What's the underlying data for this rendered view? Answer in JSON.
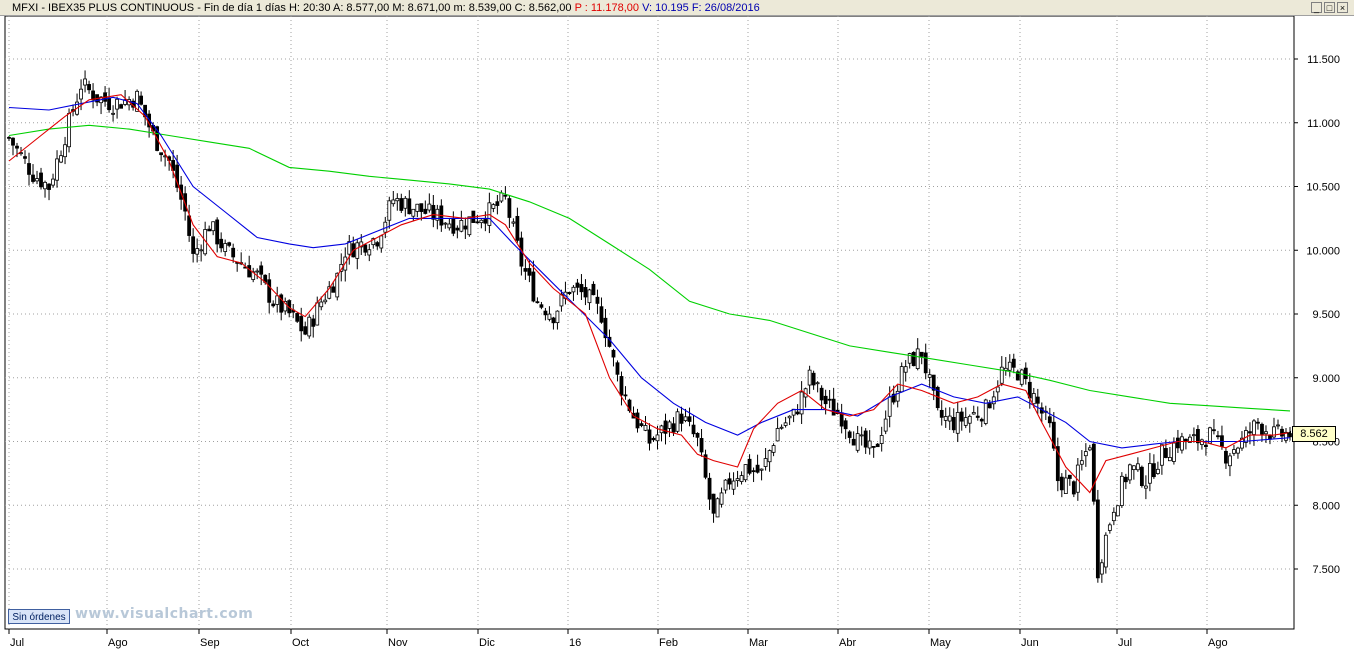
{
  "header": {
    "symbol": "MFXI - IBEX35 PLUS CONTINUOUS - Fin de día 1 días",
    "hour": "H: 20:30",
    "open": "A: 8.577,00",
    "high": "M: 8.671,00",
    "low": "m: 8.539,00",
    "close": "C: 8.562,00",
    "p_value": "P : 11.178,00",
    "volume": "V: 10.195",
    "date": "F: 26/08/2016"
  },
  "buttons": {
    "minimize": "_",
    "restore": "□",
    "close": "×"
  },
  "footer": {
    "orders_label": "Sin órdenes",
    "watermark": "www.visualchart.com"
  },
  "last_price": "8.562",
  "colors": {
    "ma_short": "#e00000",
    "ma_mid": "#0000e0",
    "ma_long": "#00d000",
    "candle": "#000000",
    "grid": "#a0a0a0"
  },
  "chart_data": {
    "type": "candlestick",
    "title": "",
    "y_ticks": [
      "11.500",
      "11.000",
      "10.500",
      "10.000",
      "9.500",
      "9.000",
      "8.500",
      "8.000",
      "7.500"
    ],
    "x_ticks": [
      "Jul",
      "Ago",
      "Sep",
      "Oct",
      "Nov",
      "Dic",
      "16",
      "Feb",
      "Mar",
      "Abr",
      "May",
      "Jun",
      "Jul",
      "Ago"
    ],
    "ylim": [
      7200,
      11900
    ],
    "grid": true,
    "series": [
      {
        "name": "close_path",
        "values": [
          [
            0,
            10880
          ],
          [
            6,
            10600
          ],
          [
            10,
            10500
          ],
          [
            14,
            10900
          ],
          [
            18,
            11300
          ],
          [
            22,
            11200
          ],
          [
            26,
            11150
          ],
          [
            32,
            11200
          ],
          [
            36,
            10900
          ],
          [
            40,
            10700
          ],
          [
            44,
            10300
          ],
          [
            46,
            9950
          ],
          [
            50,
            10200
          ],
          [
            54,
            10000
          ],
          [
            58,
            9900
          ],
          [
            62,
            9800
          ],
          [
            66,
            9600
          ],
          [
            70,
            9500
          ],
          [
            74,
            9350
          ],
          [
            78,
            9600
          ],
          [
            82,
            9800
          ],
          [
            84,
            10000
          ],
          [
            88,
            10050
          ],
          [
            92,
            10100
          ],
          [
            96,
            10400
          ],
          [
            100,
            10350
          ],
          [
            104,
            10300
          ],
          [
            108,
            10250
          ],
          [
            112,
            10200
          ],
          [
            116,
            10250
          ],
          [
            120,
            10300
          ],
          [
            124,
            10400
          ],
          [
            128,
            9900
          ],
          [
            132,
            9600
          ],
          [
            136,
            9500
          ],
          [
            140,
            9700
          ],
          [
            144,
            9650
          ],
          [
            148,
            9500
          ],
          [
            152,
            9000
          ],
          [
            156,
            8700
          ],
          [
            160,
            8500
          ],
          [
            164,
            8600
          ],
          [
            168,
            8700
          ],
          [
            172,
            8500
          ],
          [
            176,
            7900
          ],
          [
            180,
            8200
          ],
          [
            184,
            8300
          ],
          [
            188,
            8250
          ],
          [
            192,
            8600
          ],
          [
            196,
            8700
          ],
          [
            200,
            9000
          ],
          [
            204,
            8800
          ],
          [
            208,
            8700
          ],
          [
            212,
            8500
          ],
          [
            216,
            8400
          ],
          [
            220,
            8800
          ],
          [
            224,
            9100
          ],
          [
            228,
            9200
          ],
          [
            232,
            8700
          ],
          [
            236,
            8650
          ],
          [
            240,
            8700
          ],
          [
            244,
            8750
          ],
          [
            248,
            9050
          ],
          [
            252,
            9050
          ],
          [
            256,
            8850
          ],
          [
            260,
            8600
          ],
          [
            262,
            8200
          ],
          [
            266,
            8150
          ],
          [
            270,
            8500
          ],
          [
            272,
            7500
          ],
          [
            276,
            8000
          ],
          [
            280,
            8300
          ],
          [
            284,
            8200
          ],
          [
            288,
            8400
          ],
          [
            292,
            8500
          ],
          [
            296,
            8500
          ],
          [
            300,
            8550
          ],
          [
            304,
            8400
          ],
          [
            308,
            8500
          ],
          [
            312,
            8650
          ],
          [
            316,
            8550
          ],
          [
            320,
            8562
          ]
        ]
      },
      {
        "name": "ma_short",
        "values": [
          [
            0,
            10700
          ],
          [
            8,
            10900
          ],
          [
            14,
            11050
          ],
          [
            20,
            11180
          ],
          [
            28,
            11220
          ],
          [
            34,
            11050
          ],
          [
            40,
            10700
          ],
          [
            46,
            10200
          ],
          [
            52,
            9950
          ],
          [
            58,
            9900
          ],
          [
            64,
            9750
          ],
          [
            70,
            9550
          ],
          [
            74,
            9480
          ],
          [
            80,
            9700
          ],
          [
            86,
            10000
          ],
          [
            92,
            10100
          ],
          [
            98,
            10200
          ],
          [
            106,
            10280
          ],
          [
            114,
            10250
          ],
          [
            120,
            10280
          ],
          [
            124,
            10200
          ],
          [
            130,
            9900
          ],
          [
            136,
            9700
          ],
          [
            144,
            9500
          ],
          [
            150,
            9000
          ],
          [
            156,
            8700
          ],
          [
            162,
            8600
          ],
          [
            168,
            8550
          ],
          [
            172,
            8400
          ],
          [
            176,
            8350
          ],
          [
            182,
            8300
          ],
          [
            186,
            8600
          ],
          [
            192,
            8800
          ],
          [
            198,
            8900
          ],
          [
            204,
            8750
          ],
          [
            210,
            8700
          ],
          [
            216,
            8750
          ],
          [
            222,
            8950
          ],
          [
            228,
            8900
          ],
          [
            236,
            8800
          ],
          [
            242,
            8850
          ],
          [
            248,
            8950
          ],
          [
            254,
            8900
          ],
          [
            258,
            8650
          ],
          [
            264,
            8300
          ],
          [
            270,
            8100
          ],
          [
            274,
            8350
          ],
          [
            280,
            8400
          ],
          [
            286,
            8450
          ],
          [
            292,
            8500
          ],
          [
            298,
            8500
          ],
          [
            304,
            8450
          ],
          [
            310,
            8550
          ],
          [
            316,
            8550
          ],
          [
            320,
            8570
          ]
        ]
      },
      {
        "name": "ma_mid",
        "values": [
          [
            0,
            11120
          ],
          [
            10,
            11100
          ],
          [
            18,
            11150
          ],
          [
            26,
            11200
          ],
          [
            32,
            11150
          ],
          [
            38,
            10900
          ],
          [
            46,
            10500
          ],
          [
            54,
            10300
          ],
          [
            62,
            10100
          ],
          [
            70,
            10050
          ],
          [
            76,
            10020
          ],
          [
            84,
            10050
          ],
          [
            92,
            10150
          ],
          [
            100,
            10250
          ],
          [
            106,
            10250
          ],
          [
            114,
            10250
          ],
          [
            120,
            10250
          ],
          [
            126,
            10050
          ],
          [
            134,
            9800
          ],
          [
            142,
            9550
          ],
          [
            150,
            9300
          ],
          [
            158,
            9000
          ],
          [
            166,
            8800
          ],
          [
            174,
            8650
          ],
          [
            182,
            8550
          ],
          [
            188,
            8650
          ],
          [
            196,
            8750
          ],
          [
            204,
            8750
          ],
          [
            212,
            8700
          ],
          [
            220,
            8850
          ],
          [
            228,
            8950
          ],
          [
            236,
            8850
          ],
          [
            244,
            8800
          ],
          [
            252,
            8850
          ],
          [
            258,
            8750
          ],
          [
            264,
            8650
          ],
          [
            270,
            8500
          ],
          [
            278,
            8450
          ],
          [
            286,
            8480
          ],
          [
            292,
            8500
          ],
          [
            300,
            8500
          ],
          [
            308,
            8500
          ],
          [
            316,
            8520
          ],
          [
            320,
            8530
          ]
        ]
      },
      {
        "name": "ma_long",
        "values": [
          [
            0,
            10900
          ],
          [
            10,
            10950
          ],
          [
            20,
            10980
          ],
          [
            30,
            10950
          ],
          [
            40,
            10900
          ],
          [
            50,
            10850
          ],
          [
            60,
            10800
          ],
          [
            70,
            10650
          ],
          [
            80,
            10620
          ],
          [
            90,
            10580
          ],
          [
            100,
            10550
          ],
          [
            110,
            10520
          ],
          [
            120,
            10480
          ],
          [
            130,
            10380
          ],
          [
            140,
            10250
          ],
          [
            150,
            10050
          ],
          [
            160,
            9850
          ],
          [
            170,
            9600
          ],
          [
            180,
            9500
          ],
          [
            190,
            9450
          ],
          [
            200,
            9350
          ],
          [
            210,
            9250
          ],
          [
            220,
            9200
          ],
          [
            230,
            9150
          ],
          [
            240,
            9100
          ],
          [
            250,
            9050
          ],
          [
            260,
            8980
          ],
          [
            270,
            8900
          ],
          [
            280,
            8850
          ],
          [
            290,
            8800
          ],
          [
            300,
            8780
          ],
          [
            310,
            8760
          ],
          [
            320,
            8740
          ]
        ]
      }
    ]
  }
}
